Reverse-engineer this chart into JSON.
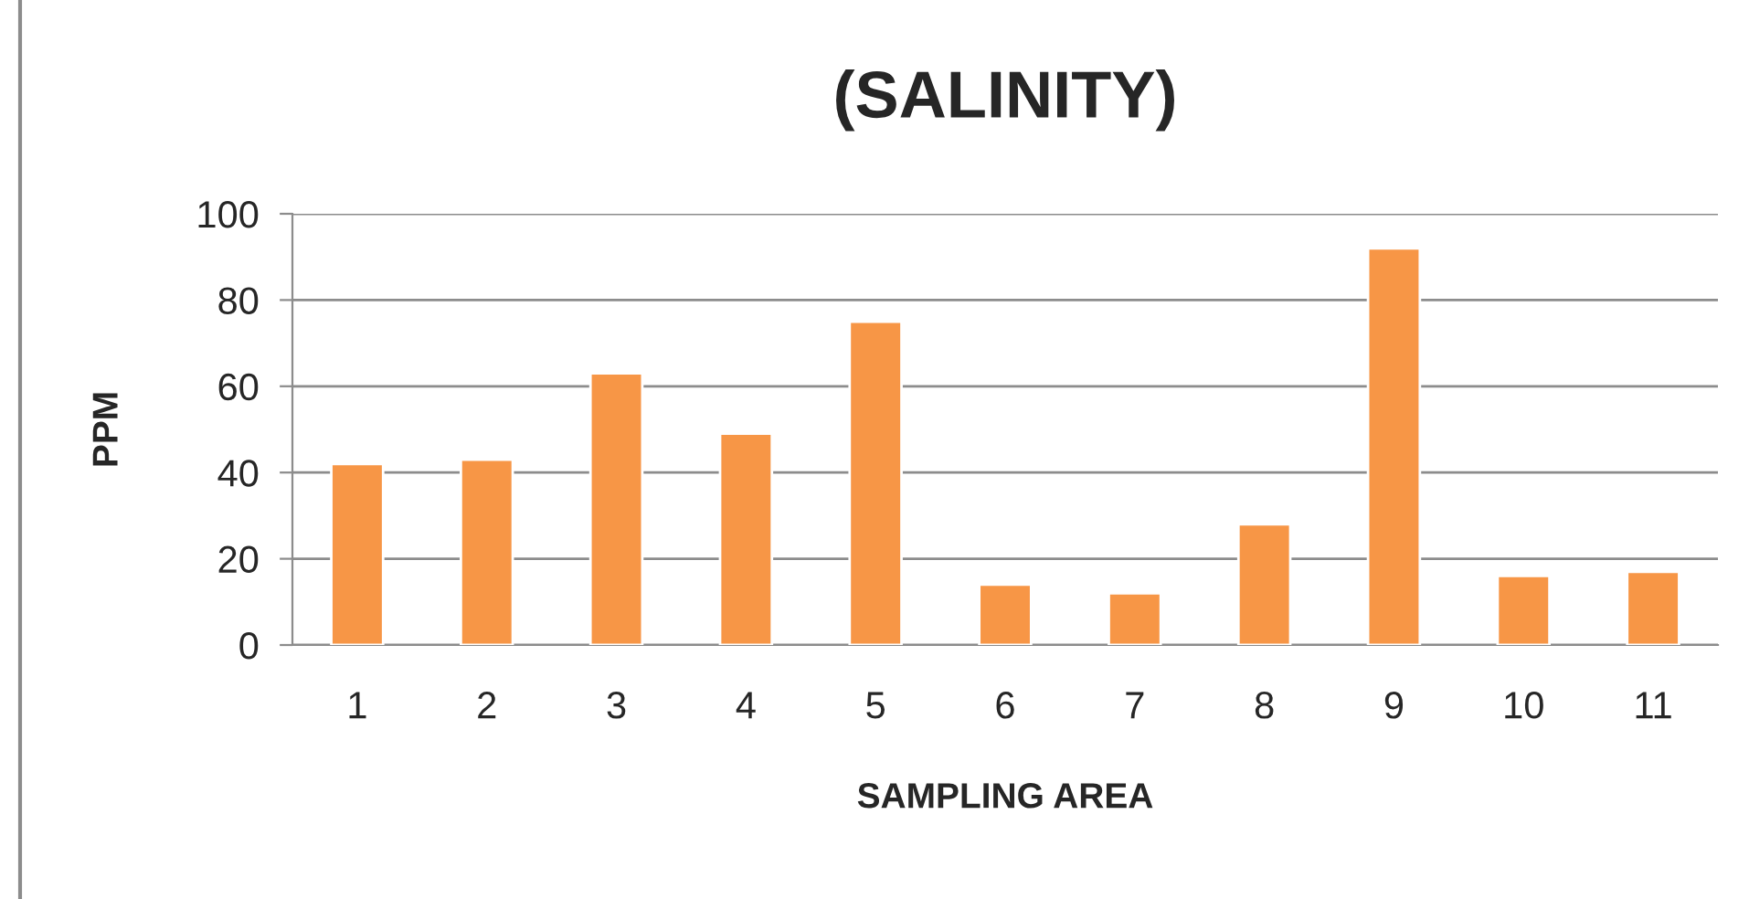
{
  "chart_data": {
    "type": "bar",
    "title": "(SALINITY)",
    "xlabel": "SAMPLING AREA",
    "ylabel": "PPM",
    "categories": [
      "1",
      "2",
      "3",
      "4",
      "5",
      "6",
      "7",
      "8",
      "9",
      "10",
      "11"
    ],
    "values": [
      42,
      43,
      63,
      49,
      75,
      14,
      12,
      28,
      92,
      16,
      17
    ],
    "color": "#f79646",
    "ylim": [
      0,
      100
    ],
    "yticks": [
      0,
      20,
      40,
      60,
      80,
      100
    ],
    "grid": "y",
    "legend": false
  }
}
